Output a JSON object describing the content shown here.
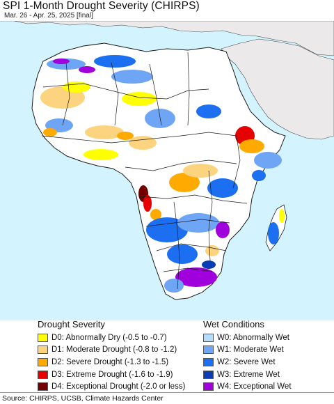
{
  "title": "SPI 1-Month Drought Severity (CHIRPS)",
  "subtitle": "Mar. 26 - Apr. 25, 2025 [final]",
  "colors": {
    "ocean": "#d3f3ff",
    "outside": "#ece9ea",
    "land": "#ffffff",
    "border": "#1a1a1a"
  },
  "legend": {
    "drought": {
      "title": "Drought Severity",
      "items": [
        {
          "label": "D0: Abnormally Dry (-0.5 to -0.7)",
          "color": "#ffff00"
        },
        {
          "label": "D1: Moderate Drought (-0.8 to -1.2)",
          "color": "#fcd37f"
        },
        {
          "label": "D2: Severe Drought (-1.3 to -1.5)",
          "color": "#ffaa00"
        },
        {
          "label": "D3: Extreme Drought (-1.6 to -1.9)",
          "color": "#e60000"
        },
        {
          "label": "D4: Exceptional Drought (-2.0 or less)",
          "color": "#730000"
        }
      ]
    },
    "wet": {
      "title": "Wet Conditions",
      "items": [
        {
          "label": "W0: Abnormally Wet",
          "color": "#b4dcff"
        },
        {
          "label": "W1: Moderate Wet",
          "color": "#6ea5f5"
        },
        {
          "label": "W2: Severe Wet",
          "color": "#1c6ff0"
        },
        {
          "label": "W3: Extreme Wet",
          "color": "#0a3cb4"
        },
        {
          "label": "W4: Exceptional Wet",
          "color": "#a000dc"
        }
      ]
    }
  },
  "source": "Source: CHIRPS, UCSB, Climate Hazards Center"
}
